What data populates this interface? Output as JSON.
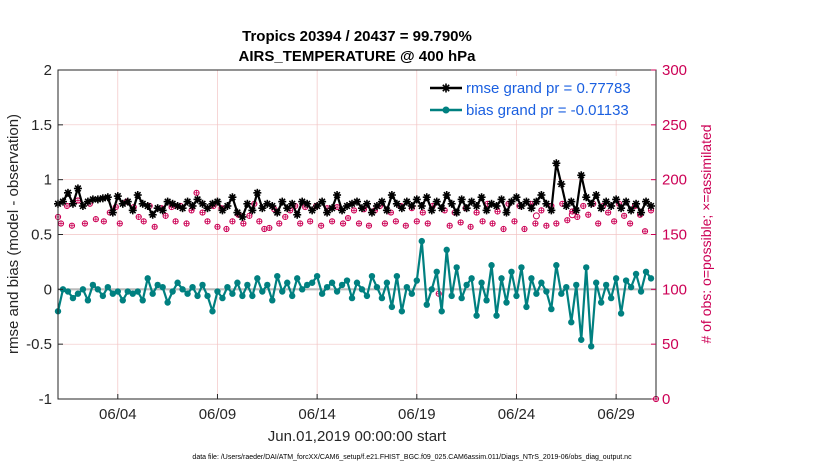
{
  "chart_data": {
    "type": "line",
    "title": "Tropics 20394 / 20437 = 99.790%",
    "subtitle": "AIRS_TEMPERATURE @ 400 hPa",
    "xlabel": "Jun.01,2019 00:00:00 start",
    "ylabel": "rmse and bias (model - observation)",
    "ylabel_right": "# of obs: o=possible; ×=assimilated",
    "footnote": "data file: /Users/raeder/DAI/ATM_forcXX/CAM6_setup/f.e21.FHIST_BGC.f09_025.CAM6assim.011/Diags_NTrS_2019-06/obs_diag_output.nc",
    "xlim": [
      1,
      31
    ],
    "ylim": [
      -1,
      2
    ],
    "ylim_right": [
      0,
      300
    ],
    "x_tick_labels": [
      "06/04",
      "06/09",
      "06/14",
      "06/19",
      "06/24",
      "06/29"
    ],
    "x_tick_days": [
      4,
      9,
      14,
      19,
      24,
      29
    ],
    "y_tick_labels": [
      "-1",
      "-0.5",
      "0",
      "0.5",
      "1",
      "1.5",
      "2"
    ],
    "y_right_tick_labels": [
      "0",
      "50",
      "100",
      "150",
      "200",
      "250",
      "300"
    ],
    "legend": [
      "rmse grand pr = 0.77783",
      "bias grand pr = -0.01133"
    ],
    "colors": {
      "rmse": "#000000",
      "bias": "#008080",
      "obs": "#cc0055",
      "zero_line": "#bbbbbb",
      "grid": "#f2c4c4"
    },
    "series": [
      {
        "name": "rmse",
        "x": [
          1.0,
          1.25,
          1.5,
          1.75,
          2.0,
          2.25,
          2.5,
          2.75,
          3.0,
          3.25,
          3.5,
          3.75,
          4.0,
          4.25,
          4.5,
          4.75,
          5.0,
          5.25,
          5.5,
          5.75,
          6.0,
          6.25,
          6.5,
          6.75,
          7.0,
          7.25,
          7.5,
          7.75,
          8.0,
          8.25,
          8.5,
          8.75,
          9.0,
          9.25,
          9.5,
          9.75,
          10.0,
          10.25,
          10.5,
          10.75,
          11.0,
          11.25,
          11.5,
          11.75,
          12.0,
          12.25,
          12.5,
          12.75,
          13.0,
          13.25,
          13.5,
          13.75,
          14.0,
          14.25,
          14.5,
          14.75,
          15.0,
          15.25,
          15.5,
          15.75,
          16.0,
          16.25,
          16.5,
          16.75,
          17.0,
          17.25,
          17.5,
          17.75,
          18.0,
          18.25,
          18.5,
          18.75,
          19.0,
          19.25,
          19.5,
          19.75,
          20.0,
          20.25,
          20.5,
          20.75,
          21.0,
          21.25,
          21.5,
          21.75,
          22.0,
          22.25,
          22.5,
          22.75,
          23.0,
          23.25,
          23.5,
          23.75,
          24.0,
          24.25,
          24.5,
          24.75,
          25.0,
          25.25,
          25.5,
          25.75,
          26.0,
          26.25,
          26.5,
          26.75,
          27.0,
          27.25,
          27.5,
          27.75,
          28.0,
          28.25,
          28.5,
          28.75,
          29.0,
          29.25,
          29.5,
          29.75,
          30.0,
          30.25,
          30.5,
          30.75
        ],
        "values": [
          0.78,
          0.8,
          0.88,
          0.78,
          0.92,
          0.76,
          0.8,
          0.82,
          0.82,
          0.83,
          0.84,
          0.7,
          0.85,
          0.78,
          0.8,
          0.72,
          0.86,
          0.78,
          0.76,
          0.68,
          0.74,
          0.72,
          0.8,
          0.78,
          0.76,
          0.74,
          0.8,
          0.76,
          0.82,
          0.78,
          0.74,
          0.78,
          0.8,
          0.72,
          0.76,
          0.84,
          0.7,
          0.66,
          0.78,
          0.72,
          0.88,
          0.74,
          0.78,
          0.76,
          0.7,
          0.8,
          0.74,
          0.78,
          0.68,
          0.8,
          0.78,
          0.72,
          0.76,
          0.8,
          0.7,
          0.74,
          0.86,
          0.72,
          0.76,
          0.78,
          0.8,
          0.74,
          0.78,
          0.7,
          0.76,
          0.8,
          0.72,
          0.86,
          0.78,
          0.74,
          0.8,
          0.76,
          0.82,
          0.76,
          0.84,
          0.72,
          0.8,
          0.74,
          0.86,
          0.78,
          0.7,
          0.82,
          0.74,
          0.8,
          0.76,
          0.84,
          0.72,
          0.78,
          0.76,
          0.82,
          0.7,
          0.8,
          0.84,
          0.76,
          0.8,
          0.74,
          0.8,
          0.86,
          0.78,
          0.72,
          1.15,
          0.96,
          0.76,
          0.8,
          0.72,
          1.04,
          0.84,
          0.78,
          0.86,
          0.74,
          0.8,
          0.76,
          0.82,
          0.74,
          0.8,
          0.72,
          0.78,
          0.7,
          0.8,
          0.76
        ]
      },
      {
        "name": "bias",
        "x": [
          1.0,
          1.25,
          1.5,
          1.75,
          2.0,
          2.25,
          2.5,
          2.75,
          3.0,
          3.25,
          3.5,
          3.75,
          4.0,
          4.25,
          4.5,
          4.75,
          5.0,
          5.25,
          5.5,
          5.75,
          6.0,
          6.25,
          6.5,
          6.75,
          7.0,
          7.25,
          7.5,
          7.75,
          8.0,
          8.25,
          8.5,
          8.75,
          9.0,
          9.25,
          9.5,
          9.75,
          10.0,
          10.25,
          10.5,
          10.75,
          11.0,
          11.25,
          11.5,
          11.75,
          12.0,
          12.25,
          12.5,
          12.75,
          13.0,
          13.25,
          13.5,
          13.75,
          14.0,
          14.25,
          14.5,
          14.75,
          15.0,
          15.25,
          15.5,
          15.75,
          16.0,
          16.25,
          16.5,
          16.75,
          17.0,
          17.25,
          17.5,
          17.75,
          18.0,
          18.25,
          18.5,
          18.75,
          19.0,
          19.25,
          19.5,
          19.75,
          20.0,
          20.25,
          20.5,
          20.75,
          21.0,
          21.25,
          21.5,
          21.75,
          22.0,
          22.25,
          22.5,
          22.75,
          23.0,
          23.25,
          23.5,
          23.75,
          24.0,
          24.25,
          24.5,
          24.75,
          25.0,
          25.25,
          25.5,
          25.75,
          26.0,
          26.25,
          26.5,
          26.75,
          27.0,
          27.25,
          27.5,
          27.75,
          28.0,
          28.25,
          28.5,
          28.75,
          29.0,
          29.25,
          29.5,
          29.75,
          30.0,
          30.25,
          30.5,
          30.75
        ],
        "values": [
          -0.2,
          0.0,
          -0.02,
          -0.08,
          -0.04,
          0.0,
          -0.1,
          0.04,
          0.0,
          -0.06,
          0.02,
          -0.04,
          -0.02,
          -0.1,
          -0.02,
          -0.04,
          -0.02,
          -0.1,
          0.1,
          -0.04,
          0.04,
          0.02,
          -0.12,
          -0.02,
          0.06,
          0.0,
          -0.04,
          0.02,
          -0.06,
          0.04,
          -0.06,
          -0.2,
          -0.02,
          -0.08,
          0.02,
          -0.04,
          0.06,
          -0.06,
          0.04,
          -0.06,
          0.1,
          -0.02,
          0.04,
          -0.1,
          0.12,
          -0.02,
          0.06,
          -0.06,
          0.1,
          0.0,
          0.04,
          0.06,
          0.12,
          -0.04,
          0.02,
          0.06,
          -0.02,
          0.04,
          0.08,
          -0.08,
          0.06,
          0.0,
          -0.06,
          0.12,
          0.02,
          -0.08,
          0.06,
          -0.16,
          0.12,
          -0.2,
          0.02,
          -0.04,
          0.08,
          0.44,
          -0.14,
          0.0,
          0.16,
          -0.2,
          0.36,
          -0.06,
          0.2,
          -0.08,
          0.04,
          0.1,
          -0.24,
          0.06,
          -0.1,
          0.22,
          -0.24,
          0.1,
          -0.12,
          0.16,
          -0.06,
          0.2,
          -0.16,
          0.1,
          -0.04,
          0.06,
          -0.02,
          -0.18,
          0.22,
          -0.04,
          0.02,
          -0.3,
          0.04,
          -0.46,
          0.2,
          -0.52,
          0.06,
          -0.12,
          0.04,
          -0.08,
          0.1,
          -0.22,
          0.08,
          0.02,
          0.14,
          -0.02,
          0.16,
          0.1
        ]
      }
    ],
    "obs_possible": [
      {
        "x": 25.0,
        "count": 167
      },
      {
        "x": 26.8,
        "count": 168
      }
    ],
    "obs_assimilated": {
      "x": [
        1.0,
        1.15,
        1.45,
        1.7,
        2.0,
        2.35,
        2.6,
        2.9,
        3.3,
        3.6,
        3.9,
        4.1,
        4.45,
        4.8,
        5.05,
        5.3,
        5.6,
        5.85,
        6.2,
        6.4,
        6.7,
        6.9,
        7.15,
        7.45,
        7.7,
        7.95,
        8.25,
        8.5,
        8.8,
        9.0,
        9.2,
        9.45,
        9.75,
        10.05,
        10.3,
        10.6,
        10.85,
        11.1,
        11.35,
        11.6,
        11.85,
        12.1,
        12.4,
        12.65,
        12.9,
        13.15,
        13.4,
        13.65,
        13.95,
        14.2,
        14.5,
        14.75,
        15.0,
        15.3,
        15.55,
        15.85,
        16.1,
        16.35,
        16.6,
        16.9,
        17.15,
        17.4,
        17.7,
        17.95,
        18.2,
        18.45,
        18.75,
        19.0,
        19.3,
        19.55,
        19.8,
        20.1,
        20.4,
        20.65,
        20.9,
        21.2,
        21.45,
        21.7,
        22.0,
        22.3,
        22.55,
        22.8,
        23.05,
        23.35,
        23.6,
        23.9,
        24.15,
        24.4,
        24.7,
        24.95,
        25.25,
        25.5,
        25.75,
        26.0,
        26.3,
        26.55,
        26.8,
        27.05,
        27.35,
        27.6,
        27.85,
        28.1,
        28.35,
        28.6,
        28.9,
        29.15,
        29.4,
        29.7,
        29.95,
        30.2,
        30.45,
        30.75,
        31.0
      ],
      "counts": [
        166,
        160,
        176,
        158,
        181,
        160,
        178,
        164,
        162,
        170,
        175,
        160,
        180,
        175,
        166,
        162,
        176,
        157,
        174,
        167,
        175,
        162,
        176,
        160,
        172,
        188,
        170,
        162,
        176,
        157,
        174,
        155,
        162,
        168,
        160,
        167,
        178,
        162,
        155,
        156,
        173,
        160,
        166,
        172,
        176,
        160,
        175,
        162,
        176,
        158,
        174,
        162,
        175,
        160,
        165,
        172,
        160,
        173,
        158,
        172,
        176,
        160,
        170,
        162,
        176,
        158,
        174,
        162,
        170,
        160,
        176,
        96,
        172,
        158,
        170,
        161,
        174,
        157,
        170,
        162,
        178,
        160,
        171,
        155,
        178,
        162,
        176,
        155,
        178,
        160,
        172,
        158,
        176,
        160,
        178,
        163,
        171,
        166,
        176,
        168,
        178,
        160,
        176,
        170,
        162,
        178,
        167,
        160,
        176,
        168,
        153,
        172,
        0
      ]
    }
  }
}
